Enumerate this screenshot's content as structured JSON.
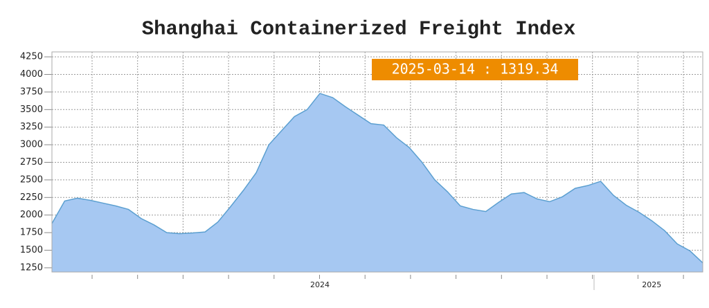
{
  "chart_data": {
    "type": "area",
    "title": "Shanghai Containerized Freight Index",
    "annotation": "2025-03-14 : 1319.34",
    "categories": [
      null,
      null,
      null,
      null,
      null,
      null,
      null,
      null,
      null,
      null,
      null,
      null,
      null,
      null,
      null,
      null,
      null,
      null,
      null,
      null,
      null,
      "2024",
      null,
      null,
      null,
      null,
      null,
      null,
      null,
      null,
      null,
      null,
      null,
      null,
      null,
      null,
      null,
      null,
      null,
      null,
      null,
      null,
      null,
      null,
      null,
      null,
      null,
      "2025",
      null,
      null,
      null,
      null
    ],
    "values": [
      1880,
      2200,
      2240,
      2210,
      2170,
      2130,
      2080,
      1950,
      1860,
      1750,
      1735,
      1745,
      1760,
      1900,
      2120,
      2350,
      2600,
      3000,
      3200,
      3400,
      3500,
      3730,
      3670,
      3540,
      3420,
      3300,
      3280,
      3100,
      2960,
      2750,
      2500,
      2330,
      2130,
      2080,
      2050,
      2180,
      2300,
      2320,
      2230,
      2190,
      2260,
      2380,
      2420,
      2480,
      2280,
      2140,
      2040,
      1920,
      1780,
      1590,
      1490,
      1320
    ],
    "color": "#a6c8f2",
    "line_color": "#5b9fd0",
    "annotation_color": "#ee8c00",
    "ylim": [
      1190,
      4320
    ],
    "yticks": [
      1250,
      1500,
      1750,
      2000,
      2250,
      2500,
      2750,
      3000,
      3250,
      3500,
      3750,
      4000,
      4250
    ],
    "grid": true
  }
}
